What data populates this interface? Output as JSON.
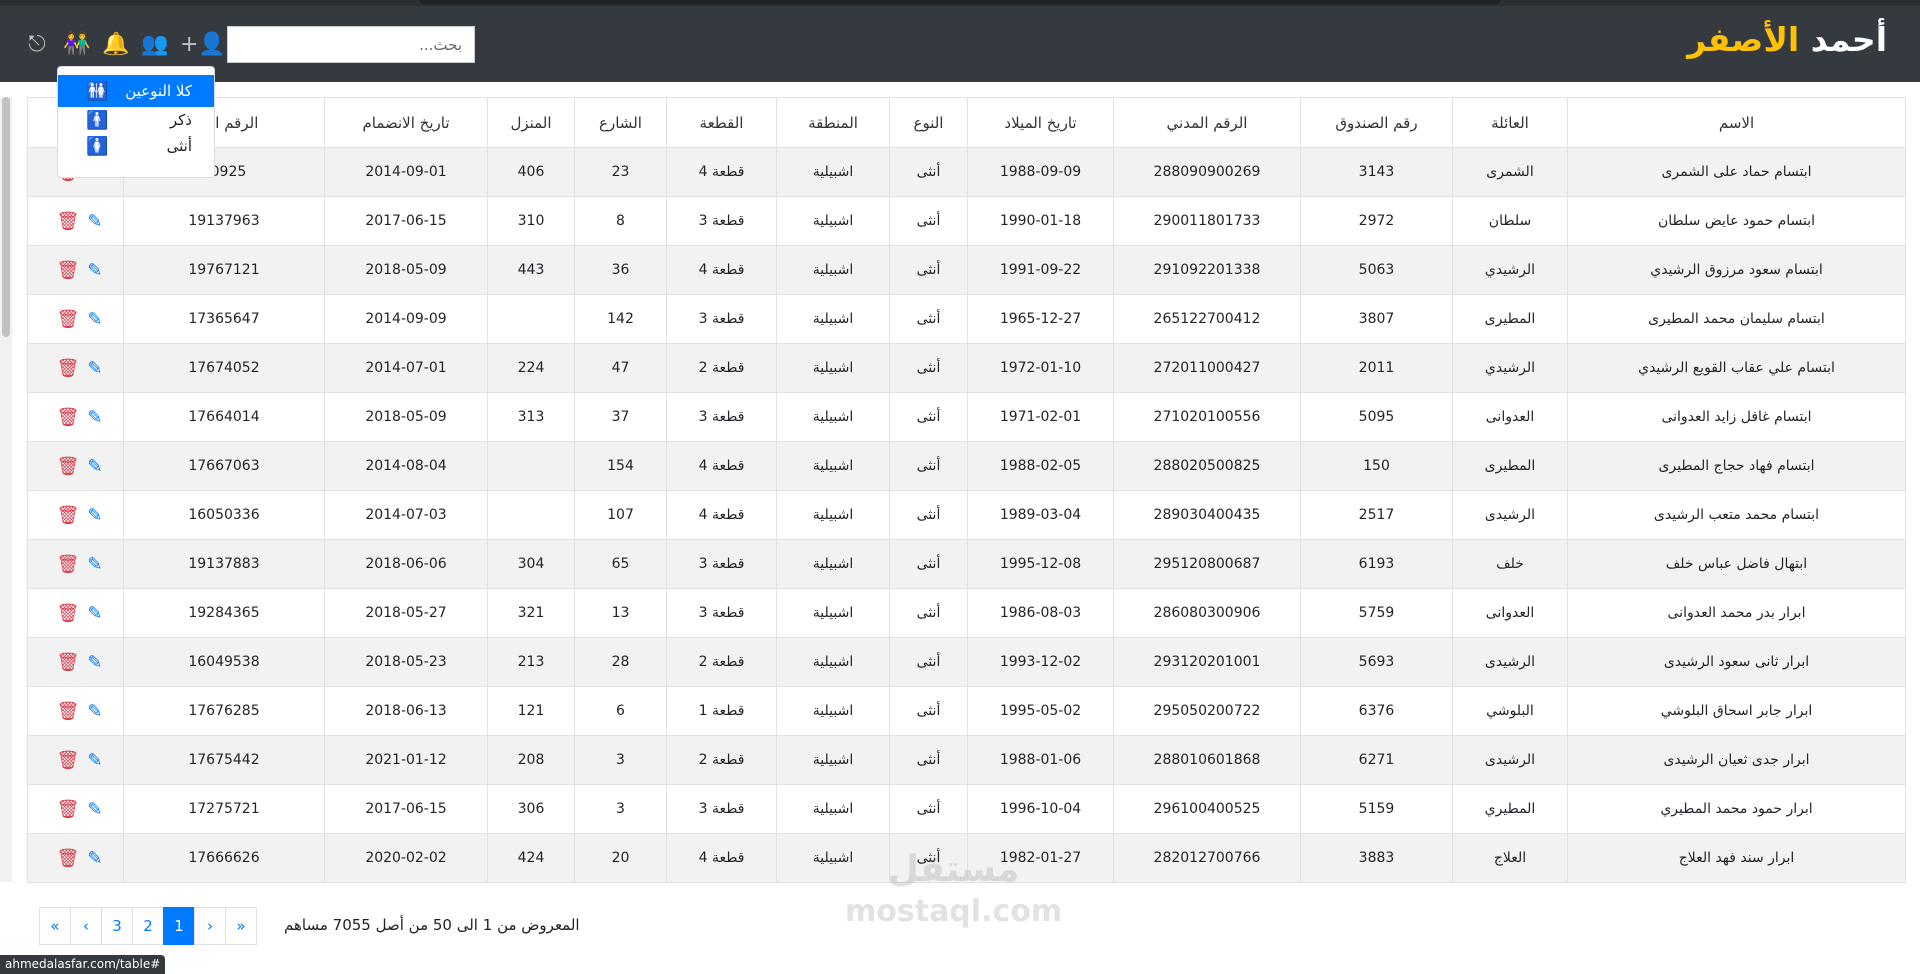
{
  "header": {
    "brand_first": "أحمد",
    "brand_second": "الأصفر",
    "search_placeholder": "بحث...",
    "accent": "#ffc107"
  },
  "icons": [
    "exit-icon",
    "gender-filter-icon",
    "bell-icon",
    "users-group-icon",
    "add-user-icon"
  ],
  "gender_dropdown": {
    "items": [
      {
        "label": "كلا النوعين",
        "active": true
      },
      {
        "label": "ذكر"
      },
      {
        "label": "أنثى"
      }
    ]
  },
  "table": {
    "columns": [
      "الاسم",
      "العائلة",
      "رقم الصندوق",
      "الرقم المدني",
      "تاريخ الميلاد",
      "النوع",
      "المنطقة",
      "القطعة",
      "الشارع",
      "المنزل",
      "تاريخ الانضمام",
      "الرقم الالي",
      "تحكم"
    ],
    "rows": [
      [
        "ابتسام حماد على الشمرى",
        "الشمرى",
        "3143",
        "288090900269",
        "1988-09-09",
        "أنثى",
        "اشبيلية",
        "قطعة 4",
        "23",
        "406",
        "2014-09-01",
        "00925"
      ],
      [
        "ابتسام حمود عايض سلطان",
        "سلطان",
        "2972",
        "290011801733",
        "1990-01-18",
        "أنثى",
        "اشبيلية",
        "قطعة 3",
        "8",
        "310",
        "2017-06-15",
        "19137963"
      ],
      [
        "ابتسام سعود مرزوق الرشيدي",
        "الرشيدي",
        "5063",
        "291092201338",
        "1991-09-22",
        "أنثى",
        "اشبيلية",
        "قطعة 4",
        "36",
        "443",
        "2018-05-09",
        "19767121"
      ],
      [
        "ابتسام سليمان محمد المطيرى",
        "المطيرى",
        "3807",
        "265122700412",
        "1965-12-27",
        "أنثى",
        "اشبيلية",
        "قطعة 3",
        "142",
        "",
        "2014-09-09",
        "17365647"
      ],
      [
        "ابتسام علي عقاب القويع الرشيدي",
        "الرشيدي",
        "2011",
        "272011000427",
        "1972-01-10",
        "أنثى",
        "اشبيلية",
        "قطعة 2",
        "47",
        "224",
        "2014-07-01",
        "17674052"
      ],
      [
        "ابتسام غافل زايد العدوانى",
        "العدوانى",
        "5095",
        "271020100556",
        "1971-02-01",
        "أنثى",
        "اشبيلية",
        "قطعة 3",
        "37",
        "313",
        "2018-05-09",
        "17664014"
      ],
      [
        "ابتسام فهاد حجاج المطيرى",
        "المطيرى",
        "150",
        "288020500825",
        "1988-02-05",
        "أنثى",
        "اشبيلية",
        "قطعة 4",
        "154",
        "",
        "2014-08-04",
        "17667063"
      ],
      [
        "ابتسام محمد متعب الرشيدى",
        "الرشيدى",
        "2517",
        "289030400435",
        "1989-03-04",
        "أنثى",
        "اشبيلية",
        "قطعة 4",
        "107",
        "",
        "2014-07-03",
        "16050336"
      ],
      [
        "ابتهال فاضل عباس خلف",
        "خلف",
        "6193",
        "295120800687",
        "1995-12-08",
        "أنثى",
        "اشبيلية",
        "قطعة 3",
        "65",
        "304",
        "2018-06-06",
        "19137883"
      ],
      [
        "ابرار بدر محمد العدوانى",
        "العدوانى",
        "5759",
        "286080300906",
        "1986-08-03",
        "أنثى",
        "اشبيلية",
        "قطعة 3",
        "13",
        "321",
        "2018-05-27",
        "19284365"
      ],
      [
        "ابرار ثانى سعود الرشيدى",
        "الرشيدى",
        "5693",
        "293120201001",
        "1993-12-02",
        "أنثى",
        "اشبيلية",
        "قطعة 2",
        "28",
        "213",
        "2018-05-23",
        "16049538"
      ],
      [
        "ابرار جابر اسحاق البلوشي",
        "البلوشي",
        "6376",
        "295050200722",
        "1995-05-02",
        "أنثى",
        "اشبيلية",
        "قطعة 1",
        "6",
        "121",
        "2018-06-13",
        "17676285"
      ],
      [
        "ابرار جدى ثعيان الرشيدى",
        "الرشيدى",
        "6271",
        "288010601868",
        "1988-01-06",
        "أنثى",
        "اشبيلية",
        "قطعة 2",
        "3",
        "208",
        "2021-01-12",
        "17675442"
      ],
      [
        "ابرار حمود محمد المطيري",
        "المطيري",
        "5159",
        "296100400525",
        "1996-10-04",
        "أنثى",
        "اشبيلية",
        "قطعة 3",
        "3",
        "306",
        "2017-06-15",
        "17275721"
      ],
      [
        "ابرار سند فهد العلاج",
        "العلاج",
        "3883",
        "282012700766",
        "1982-01-27",
        "أنثى",
        "اشبيلية",
        "قطعة 4",
        "20",
        "424",
        "2020-02-02",
        "17666626"
      ]
    ]
  },
  "pagination": {
    "first": "«",
    "prev": "‹",
    "pages": [
      "3",
      "2",
      "1"
    ],
    "active": "1",
    "next": "›",
    "last": "»",
    "info": "المعروض من 1 الى 50 من أصل 7055 مساهم"
  },
  "status_bar": "ahmedalasfar.com/table#",
  "watermark": "مستقل mostaql.com"
}
